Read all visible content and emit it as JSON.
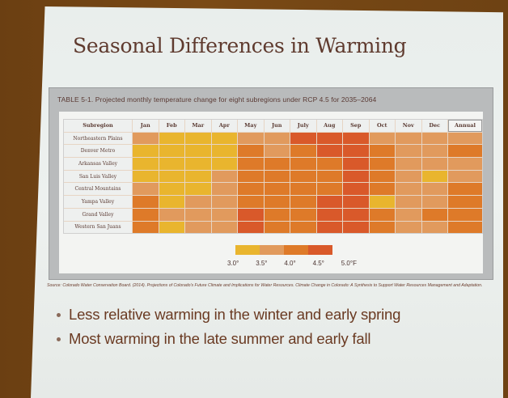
{
  "slide": {
    "title": "Seasonal Differences in Warming",
    "bullets": [
      "Less relative warming in the winter and early spring",
      "Most warming in the late summer and early fall"
    ],
    "source": "Source: Colorado Water Conservation Board. (2014). Projections of Colorado's Future Climate and Implications for Water Resources. Climate Change in Colorado: A Synthesis to Support Water Resources Management and Adaptation."
  },
  "table": {
    "caption": "TABLE 5-1. Projected monthly temperature change for eight subregions under RCP 4.5 for 2035–2064",
    "header_first": "Subregion",
    "columns": [
      "Jan",
      "Feb",
      "Mar",
      "Apr",
      "May",
      "Jun",
      "July",
      "Aug",
      "Sep",
      "Oct",
      "Nov",
      "Dec",
      "Annual"
    ],
    "rows": [
      "Northeastern Plains",
      "Denver Metro",
      "Arkansas Valley",
      "San Luis Valley",
      "Central Mountains",
      "Yampa Valley",
      "Grand Valley",
      "Western San Juans"
    ]
  },
  "legend": {
    "ticks": [
      "3.0°",
      "3.5°",
      "4.0°",
      "4.5°",
      "5.0°F"
    ],
    "colors": [
      "#e9b52e",
      "#e19a5d",
      "#de7a29",
      "#d9592a"
    ]
  },
  "chart_data": {
    "type": "heatmap",
    "title": "TABLE 5-1. Projected monthly temperature change for eight subregions under RCP 4.5 for 2035–2064",
    "xlabel": "Month",
    "ylabel": "Subregion",
    "x": [
      "Jan",
      "Feb",
      "Mar",
      "Apr",
      "May",
      "Jun",
      "July",
      "Aug",
      "Sep",
      "Oct",
      "Nov",
      "Dec",
      "Annual"
    ],
    "y": [
      "Northeastern Plains",
      "Denver Metro",
      "Arkansas Valley",
      "San Luis Valley",
      "Central Mountains",
      "Yampa Valley",
      "Grand Valley",
      "Western San Juans"
    ],
    "bins": [
      {
        "level": 1,
        "range": "3.0–3.5°F",
        "color": "#e9b52e"
      },
      {
        "level": 2,
        "range": "3.5–4.0°F",
        "color": "#e19a5d"
      },
      {
        "level": 3,
        "range": "4.0–4.5°F",
        "color": "#de7a29"
      },
      {
        "level": 4,
        "range": "4.5–5.0°F",
        "color": "#d9592a"
      }
    ],
    "values": [
      [
        2,
        1,
        1,
        1,
        2,
        2,
        4,
        4,
        4,
        2,
        2,
        2,
        2
      ],
      [
        1,
        1,
        1,
        1,
        3,
        2,
        3,
        4,
        4,
        3,
        2,
        2,
        3
      ],
      [
        1,
        1,
        1,
        1,
        3,
        3,
        3,
        3,
        4,
        3,
        2,
        2,
        2
      ],
      [
        1,
        1,
        1,
        2,
        3,
        3,
        3,
        3,
        4,
        3,
        2,
        1,
        2
      ],
      [
        2,
        1,
        1,
        2,
        3,
        3,
        3,
        3,
        4,
        3,
        2,
        2,
        3
      ],
      [
        3,
        1,
        2,
        2,
        3,
        3,
        3,
        4,
        4,
        1,
        2,
        2,
        3
      ],
      [
        3,
        2,
        2,
        2,
        4,
        3,
        3,
        4,
        4,
        3,
        2,
        3,
        3
      ],
      [
        3,
        1,
        2,
        2,
        4,
        3,
        3,
        4,
        4,
        3,
        2,
        2,
        3
      ]
    ],
    "legend_ticks": [
      "3.0°",
      "3.5°",
      "4.0°",
      "4.5°",
      "5.0°F"
    ],
    "legend_position": "bottom-center"
  }
}
